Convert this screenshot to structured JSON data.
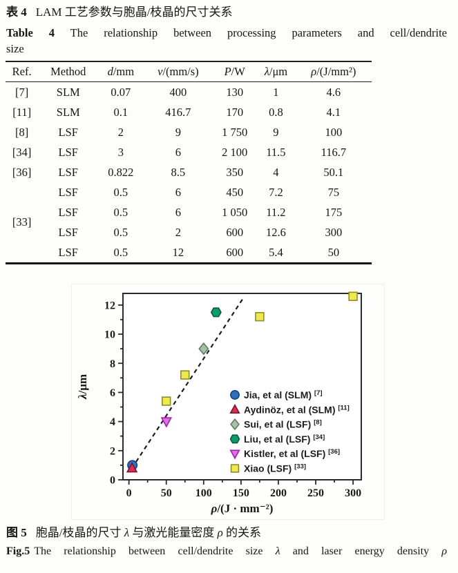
{
  "table_section": {
    "title_zh_label": "表 4",
    "title_zh": "LAM 工艺参数与胞晶/枝晶的尺寸关系",
    "title_en_label": "Table 4",
    "title_en_line1": "The relationship between processing parameters and cell/dendrite",
    "title_en_line2": "size",
    "columns": [
      {
        "label": "Ref."
      },
      {
        "label": "Method"
      },
      {
        "var": "d",
        "unit": "/mm"
      },
      {
        "var": "v",
        "unit": "/(mm/s)"
      },
      {
        "var": "P",
        "unit": "/W"
      },
      {
        "var": "λ",
        "unit": "/μm"
      },
      {
        "var": "ρ",
        "unit": "/(J/mm²)"
      }
    ],
    "rows": [
      {
        "ref": "[7]",
        "cells": [
          "SLM",
          "0.07",
          "400",
          "130",
          "1",
          "4.6"
        ]
      },
      {
        "ref": "[11]",
        "cells": [
          "SLM",
          "0.1",
          "416.7",
          "170",
          "0.8",
          "4.1"
        ]
      },
      {
        "ref": "[8]",
        "cells": [
          "LSF",
          "2",
          "9",
          "1 750",
          "9",
          "100"
        ]
      },
      {
        "ref": "[34]",
        "cells": [
          "LSF",
          "3",
          "6",
          "2 100",
          "11.5",
          "116.7"
        ]
      },
      {
        "ref": "[36]",
        "cells": [
          "LSF",
          "0.822",
          "8.5",
          "350",
          "4",
          "50.1"
        ]
      }
    ],
    "group": {
      "ref": "[33]",
      "rows": [
        [
          "LSF",
          "0.5",
          "6",
          "450",
          "7.2",
          "75"
        ],
        [
          "LSF",
          "0.5",
          "6",
          "1 050",
          "11.2",
          "175"
        ],
        [
          "LSF",
          "0.5",
          "2",
          "600",
          "12.6",
          "300"
        ],
        [
          "LSF",
          "0.5",
          "12",
          "600",
          "5.4",
          "50"
        ]
      ]
    }
  },
  "figure_section": {
    "caption_zh_label": "图 5",
    "caption_zh_segments": [
      {
        "t": "胞晶/枝晶的尺寸 "
      },
      {
        "t": "λ",
        "i": true
      },
      {
        "t": " 与激光能量密度 "
      },
      {
        "t": "ρ",
        "i": true
      },
      {
        "t": " 的关系"
      }
    ],
    "caption_en_label": "Fig.5",
    "caption_en_segments": [
      {
        "t": "The relationship between cell/dendrite size "
      },
      {
        "t": "λ",
        "i": true
      },
      {
        "t": " and laser energy density "
      },
      {
        "t": "ρ",
        "i": true
      }
    ]
  },
  "chart_data": {
    "type": "scatter",
    "title": "",
    "xlabel": "ρ/(J · mm⁻²)",
    "ylabel": "λ/μm",
    "xlabel_segments": [
      {
        "t": "ρ",
        "i": true
      },
      {
        "t": "/(J · mm⁻²)"
      }
    ],
    "ylabel_segments": [
      {
        "t": "λ",
        "i": true
      },
      {
        "t": "/μm"
      }
    ],
    "xlim": [
      -8,
      311
    ],
    "ylim": [
      0,
      12.8
    ],
    "x_ticks": [
      0,
      50,
      100,
      150,
      200,
      250,
      300
    ],
    "x_minor_ticks": [
      25,
      75,
      125,
      175,
      225,
      275
    ],
    "y_ticks": [
      0,
      2,
      4,
      6,
      8,
      10,
      12
    ],
    "y_minor_ticks": [
      1,
      3,
      5,
      7,
      9,
      11
    ],
    "grid": false,
    "legend_position": "inside-right-center",
    "frame_color": "#2b2b2b",
    "series": [
      {
        "name": "Jia, et al (SLM)",
        "ref": "[7]",
        "marker": "circle",
        "fill": "#2e6fbe",
        "stroke": "#14417e",
        "points": [
          [
            4.6,
            1.0
          ]
        ]
      },
      {
        "name": "Aydinöz, et al (SLM)",
        "ref": "[11]",
        "marker": "triangle-up",
        "fill": "#d63058",
        "stroke": "#7e0f2e",
        "points": [
          [
            4.1,
            0.8
          ]
        ]
      },
      {
        "name": "Sui, et al (LSF)",
        "ref": "[8]",
        "marker": "diamond",
        "fill": "#a8c0a8",
        "stroke": "#5c7d64",
        "points": [
          [
            100,
            9.0
          ]
        ]
      },
      {
        "name": "Liu, et al (LSF)",
        "ref": "[34]",
        "marker": "hexagon",
        "fill": "#0c9c6c",
        "stroke": "#03573c",
        "points": [
          [
            116.7,
            11.5
          ]
        ]
      },
      {
        "name": "Kistler, et al (LSF)",
        "ref": "[36]",
        "marker": "triangle-down",
        "fill": "#da70e2",
        "stroke": "#a21ab0",
        "points": [
          [
            50.1,
            4.0
          ]
        ]
      },
      {
        "name": "Xiao (LSF)",
        "ref": "[33]",
        "marker": "square",
        "fill": "#efe94f",
        "stroke": "#8c8c28",
        "points": [
          [
            75,
            7.2
          ],
          [
            175,
            11.2
          ],
          [
            300,
            12.6
          ],
          [
            50,
            5.4
          ]
        ]
      }
    ],
    "trend_line": {
      "from": [
        4,
        0.8
      ],
      "to": [
        152,
        12.4
      ],
      "dashed": true,
      "color": "#1b1b1b"
    }
  }
}
